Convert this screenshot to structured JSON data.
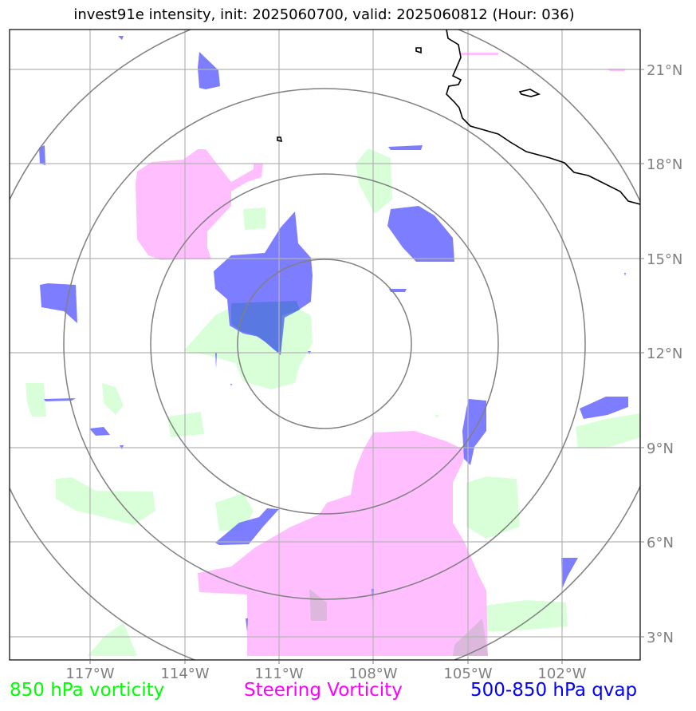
{
  "title": "invest91e intensity, init: 2025060700, valid: 2025060812 (Hour: 036)",
  "axes": {
    "lon_ticks": [
      "117°W",
      "114°W",
      "111°W",
      "108°W",
      "105°W",
      "102°W"
    ],
    "lat_ticks": [
      "21°N",
      "18°N",
      "15°N",
      "12°N",
      "9°N",
      "6°N",
      "3°N"
    ]
  },
  "legend": [
    {
      "label": "850 hPa vorticity",
      "color": "#00ff00"
    },
    {
      "label": "Steering Vorticity",
      "color": "#ff00ff"
    },
    {
      "label": "500-850 hPa qvap",
      "color": "#0000ff"
    }
  ],
  "colors": {
    "vorticity_850": "#ccffcc",
    "steering_vorticity": "#ffb8ff",
    "qvap": "#6666ff",
    "grid": "#b3b3b3",
    "range_rings": "#808080",
    "coastline": "#000000"
  },
  "map": {
    "center": "12.4°N 109.5°W",
    "range_rings_deg": [
      1.5,
      3,
      4.5,
      6
    ],
    "grid": true
  }
}
